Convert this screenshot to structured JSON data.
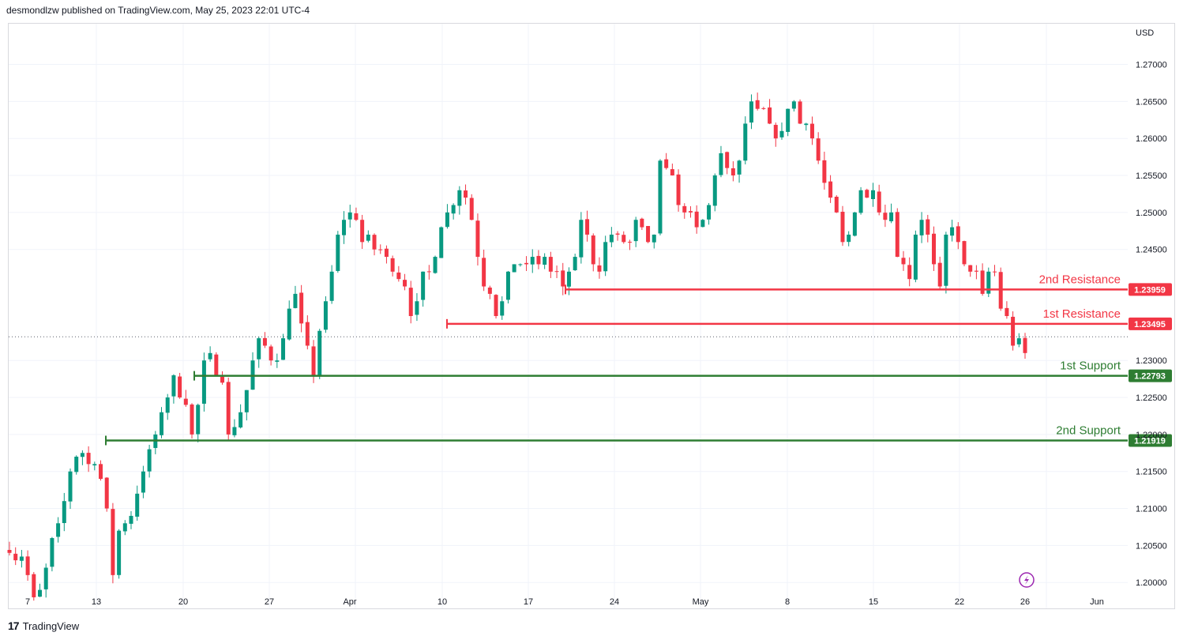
{
  "header": {
    "text": "desmondlzw published on TradingView.com, May 25, 2023 22:01 UTC-4"
  },
  "footer": {
    "logo": "17",
    "brand": "TradingView"
  },
  "chart_data": {
    "type": "candlestick",
    "currency": "USD",
    "ylim": [
      1.1965,
      1.2755
    ],
    "y_ticks": [
      "1.27000",
      "1.26500",
      "1.26000",
      "1.25500",
      "1.25000",
      "1.24500",
      "1.23000",
      "1.22500",
      "1.22000",
      "1.21500",
      "1.21000",
      "1.20500",
      "1.20000"
    ],
    "x_ticks": [
      "7",
      "13",
      "20",
      "27",
      "Apr",
      "10",
      "17",
      "24",
      "May",
      "8",
      "15",
      "22",
      "26",
      "Jun"
    ],
    "last_price": 1.2332,
    "levels": [
      {
        "name": "2nd Resistance",
        "value": 1.23959,
        "tag": "1.23959",
        "color": "#f23645",
        "label_color": "#f23645",
        "start_x": "Apr 19"
      },
      {
        "name": "1st Resistance",
        "value": 1.23495,
        "tag": "1.23495",
        "color": "#f23645",
        "label_color": "#f23645",
        "start_x": "Apr 10"
      },
      {
        "name": "1st Support",
        "value": 1.22793,
        "tag": "1.22793",
        "color": "#2e7d32",
        "label_color": "#2e7d32",
        "start_x": "Mar 20"
      },
      {
        "name": "2nd Support",
        "value": 1.21919,
        "tag": "1.21919",
        "color": "#2e7d32",
        "label_color": "#2e7d32",
        "start_x": "Mar 13"
      }
    ],
    "bull_color": "#089981",
    "bear_color": "#f23645",
    "anchors": [
      1.204,
      1.203,
      1.2035,
      1.201,
      1.198,
      1.199,
      1.202,
      1.206,
      1.208,
      1.211,
      1.215,
      1.217,
      1.2175,
      1.216,
      1.216,
      1.214,
      1.21,
      1.201,
      1.207,
      1.208,
      1.209,
      1.212,
      1.215,
      1.218,
      1.22,
      1.223,
      1.225,
      1.228,
      1.225,
      1.224,
      1.22,
      1.224,
      1.23,
      1.231,
      1.228,
      1.227,
      1.22,
      1.221,
      1.223,
      1.226,
      1.23,
      1.233,
      1.232,
      1.23,
      1.23,
      1.233,
      1.237,
      1.239,
      1.235,
      1.232,
      1.228,
      1.234,
      1.238,
      1.242,
      1.247,
      1.249,
      1.25,
      1.249,
      1.246,
      1.247,
      1.245,
      1.245,
      1.244,
      1.242,
      1.241,
      1.24,
      1.236,
      1.238,
      1.242,
      1.242,
      1.244,
      1.248,
      1.25,
      1.251,
      1.253,
      1.252,
      1.249,
      1.244,
      1.24,
      1.239,
      1.236,
      1.238,
      1.242,
      1.243,
      1.243,
      1.243,
      1.244,
      1.243,
      1.244,
      1.242,
      1.242,
      1.24,
      1.242,
      1.244,
      1.249,
      1.247,
      1.243,
      1.242,
      1.246,
      1.247,
      1.247,
      1.246,
      1.246,
      1.249,
      1.248,
      1.246,
      1.247,
      1.257,
      1.256,
      1.255,
      1.251,
      1.25,
      1.25,
      1.248,
      1.249,
      1.251,
      1.255,
      1.258,
      1.256,
      1.255,
      1.257,
      1.262,
      1.265,
      1.264,
      1.264,
      1.262,
      1.26,
      1.261,
      1.264,
      1.265,
      1.262,
      1.262,
      1.26,
      1.257,
      1.254,
      1.252,
      1.25,
      1.246,
      1.247,
      1.25,
      1.253,
      1.252,
      1.253,
      1.25,
      1.249,
      1.25,
      1.244,
      1.243,
      1.241,
      1.247,
      1.249,
      1.247,
      1.243,
      1.24,
      1.247,
      1.248,
      1.246,
      1.243,
      1.242,
      1.242,
      1.239,
      1.242,
      1.242,
      1.237,
      1.236,
      1.232,
      1.233,
      1.231
    ]
  }
}
